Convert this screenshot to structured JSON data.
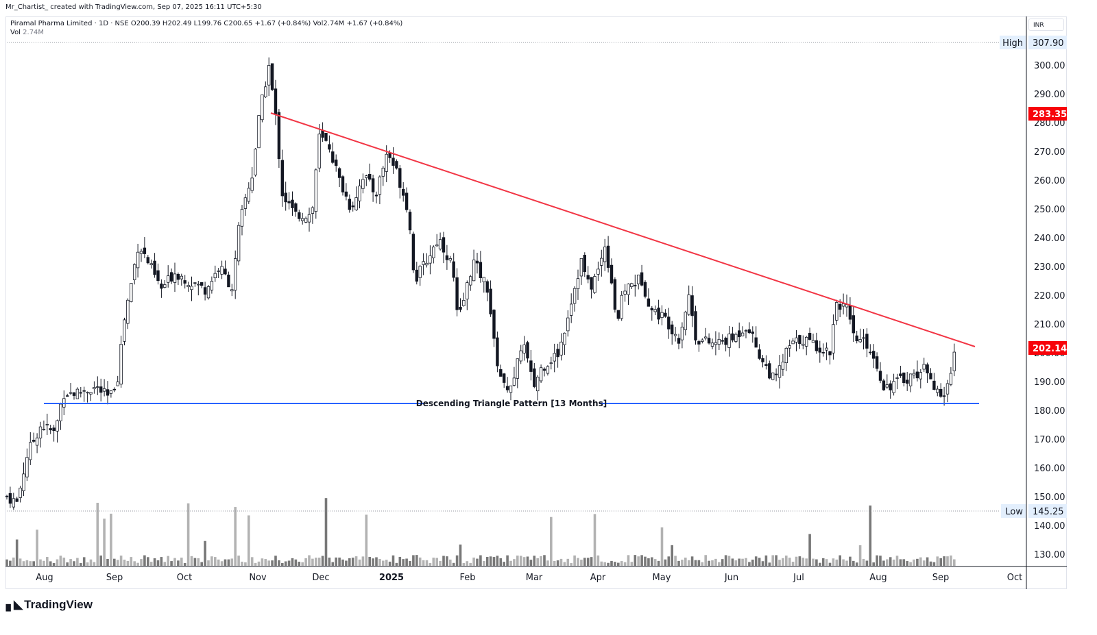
{
  "attribution": "Mr_Chartist_ created with TradingView.com, Sep 07, 2025 16:11 UTC+5:30",
  "legend": {
    "line1": "Piramal Pharma Limited · 1D · NSE  O200.39  H202.49  L199.76  C200.65  +1.67 (+0.84%)  Vol2.74M  +1.67 (+0.84%)",
    "vol_label": "Vol",
    "vol_value": "2.74M"
  },
  "currency": "INR",
  "branding": "TradingView",
  "chart_data": {
    "type": "candlestick",
    "title": "Piramal Pharma Limited · 1D · NSE",
    "ohlc_last": {
      "open": 200.39,
      "high": 202.49,
      "low": 199.76,
      "close": 200.65,
      "change": 1.67,
      "change_pct": 0.84,
      "volume": "2.74M"
    },
    "y_axis": {
      "ticks": [
        130,
        140,
        150,
        160,
        170,
        180,
        190,
        200,
        210,
        220,
        230,
        240,
        250,
        260,
        270,
        280,
        290,
        300
      ],
      "range": [
        125,
        310
      ],
      "grid": false
    },
    "x_axis": {
      "ticks": [
        "Aug",
        "Sep",
        "Oct",
        "Nov",
        "Dec",
        "2025",
        "Feb",
        "Mar",
        "Apr",
        "May",
        "Jun",
        "Jul",
        "Aug",
        "Sep",
        "Oct"
      ]
    },
    "price_labels": [
      {
        "label": "High",
        "value": "307.90",
        "style": "highlight"
      },
      {
        "label": "",
        "value": "283.35",
        "style": "red"
      },
      {
        "label": "",
        "value": "202.14",
        "style": "red"
      },
      {
        "label": "Low",
        "value": "145.25",
        "style": "highlight"
      }
    ],
    "annotations": [
      {
        "type": "trendline",
        "color": "#f23645",
        "from": {
          "month": "Nov 2024",
          "price": 283.35
        },
        "to": {
          "month": "Sep 2025",
          "price": 202.14
        }
      },
      {
        "type": "horizontal",
        "color": "#2962ff",
        "price": 182.8,
        "text": "Descending Triangle Pattern [13 Months]"
      }
    ],
    "key_points": [
      {
        "date": "Jul 2024",
        "price": 150
      },
      {
        "date": "Aug 2024",
        "price": 185
      },
      {
        "date": "Sep 2024",
        "price": 240
      },
      {
        "date": "Oct 2024",
        "price": 220
      },
      {
        "date": "Nov 2024",
        "price": 307.9
      },
      {
        "date": "Dec 2024",
        "price": 275
      },
      {
        "date": "Jan 2025",
        "price": 265
      },
      {
        "date": "Feb 2025",
        "price": 215
      },
      {
        "date": "Feb 2025 low",
        "price": 184
      },
      {
        "date": "Apr 2025",
        "price": 240
      },
      {
        "date": "May 2025",
        "price": 205
      },
      {
        "date": "Jun 2025",
        "price": 192
      },
      {
        "date": "Jul 2025",
        "price": 220
      },
      {
        "date": "Aug 2025",
        "price": 188
      },
      {
        "date": "Sep 2025 low",
        "price": 182
      },
      {
        "date": "Sep 2025",
        "price": 200.65
      }
    ],
    "volume_colors": {
      "up": "#b2b2b2",
      "down": "#787878"
    }
  }
}
